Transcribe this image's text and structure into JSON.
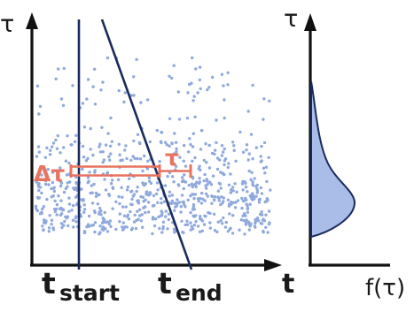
{
  "left_panel": {
    "y_axis_label": "τ",
    "x_axis_label": "t",
    "t_start_label": {
      "main": "t",
      "sub": "start"
    },
    "t_end_label": {
      "main": "t",
      "sub": "end"
    },
    "interval_label": "Δτ",
    "tau_marker_label": "τ"
  },
  "right_panel": {
    "y_axis_label": "τ",
    "x_axis_label": "f(τ)"
  },
  "colors": {
    "axis": "#111111",
    "dots": "#8fa9dd",
    "lines": "#1a2a5c",
    "interval": "#e8735f",
    "distribution_fill": "#a9bde8",
    "distribution_stroke": "#1a2a5c"
  }
}
